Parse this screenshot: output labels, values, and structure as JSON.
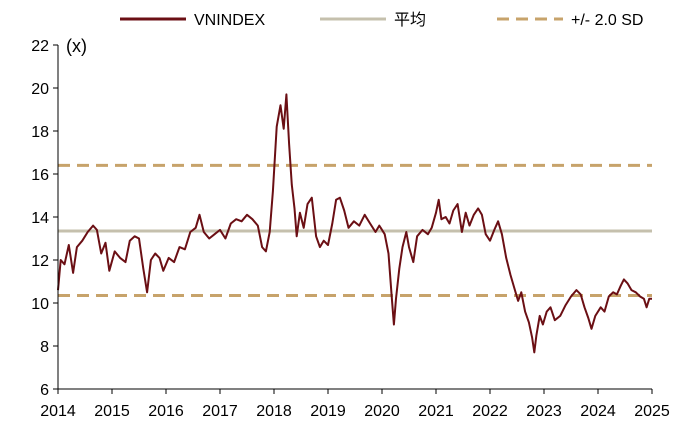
{
  "chart_data": {
    "type": "line",
    "title": "",
    "unit_label": "(x)",
    "xlabel": "",
    "ylabel": "",
    "xlim": [
      2014,
      2025
    ],
    "ylim": [
      6,
      22
    ],
    "x_ticks": [
      "2014",
      "2015",
      "2016",
      "2017",
      "2018",
      "2019",
      "2020",
      "2021",
      "2022",
      "2023",
      "2024",
      "2025"
    ],
    "y_ticks": [
      "6",
      "8",
      "10",
      "12",
      "14",
      "16",
      "18",
      "20",
      "22"
    ],
    "grid": false,
    "legend_position": "top",
    "series": [
      {
        "name": "VNINDEX",
        "color": "#6b0f14",
        "style": "solid",
        "points": [
          [
            2014.0,
            10.6
          ],
          [
            2014.05,
            12.0
          ],
          [
            2014.12,
            11.8
          ],
          [
            2014.2,
            12.7
          ],
          [
            2014.28,
            11.4
          ],
          [
            2014.35,
            12.6
          ],
          [
            2014.45,
            12.9
          ],
          [
            2014.55,
            13.3
          ],
          [
            2014.65,
            13.6
          ],
          [
            2014.72,
            13.4
          ],
          [
            2014.8,
            12.3
          ],
          [
            2014.88,
            12.8
          ],
          [
            2014.95,
            11.5
          ],
          [
            2015.05,
            12.4
          ],
          [
            2015.15,
            12.1
          ],
          [
            2015.25,
            11.9
          ],
          [
            2015.33,
            12.9
          ],
          [
            2015.42,
            13.1
          ],
          [
            2015.5,
            13.0
          ],
          [
            2015.58,
            11.6
          ],
          [
            2015.65,
            10.5
          ],
          [
            2015.72,
            12.0
          ],
          [
            2015.8,
            12.3
          ],
          [
            2015.88,
            12.1
          ],
          [
            2015.95,
            11.5
          ],
          [
            2016.05,
            12.1
          ],
          [
            2016.15,
            11.9
          ],
          [
            2016.25,
            12.6
          ],
          [
            2016.35,
            12.5
          ],
          [
            2016.45,
            13.3
          ],
          [
            2016.55,
            13.5
          ],
          [
            2016.62,
            14.1
          ],
          [
            2016.7,
            13.3
          ],
          [
            2016.8,
            13.0
          ],
          [
            2016.9,
            13.2
          ],
          [
            2017.0,
            13.4
          ],
          [
            2017.1,
            13.0
          ],
          [
            2017.2,
            13.7
          ],
          [
            2017.3,
            13.9
          ],
          [
            2017.4,
            13.8
          ],
          [
            2017.5,
            14.1
          ],
          [
            2017.6,
            13.9
          ],
          [
            2017.7,
            13.6
          ],
          [
            2017.78,
            12.6
          ],
          [
            2017.85,
            12.4
          ],
          [
            2017.92,
            13.3
          ],
          [
            2017.98,
            15.2
          ],
          [
            2018.05,
            18.2
          ],
          [
            2018.12,
            19.2
          ],
          [
            2018.18,
            18.1
          ],
          [
            2018.23,
            19.7
          ],
          [
            2018.28,
            17.4
          ],
          [
            2018.33,
            15.5
          ],
          [
            2018.38,
            14.4
          ],
          [
            2018.42,
            13.1
          ],
          [
            2018.48,
            14.2
          ],
          [
            2018.55,
            13.5
          ],
          [
            2018.62,
            14.6
          ],
          [
            2018.7,
            14.9
          ],
          [
            2018.78,
            13.1
          ],
          [
            2018.85,
            12.6
          ],
          [
            2018.92,
            12.9
          ],
          [
            2019.0,
            12.7
          ],
          [
            2019.08,
            13.7
          ],
          [
            2019.15,
            14.8
          ],
          [
            2019.22,
            14.9
          ],
          [
            2019.3,
            14.3
          ],
          [
            2019.38,
            13.5
          ],
          [
            2019.48,
            13.8
          ],
          [
            2019.58,
            13.6
          ],
          [
            2019.68,
            14.1
          ],
          [
            2019.78,
            13.7
          ],
          [
            2019.88,
            13.3
          ],
          [
            2019.95,
            13.6
          ],
          [
            2020.05,
            13.2
          ],
          [
            2020.12,
            12.3
          ],
          [
            2020.18,
            10.3
          ],
          [
            2020.22,
            9.0
          ],
          [
            2020.26,
            10.2
          ],
          [
            2020.32,
            11.6
          ],
          [
            2020.38,
            12.6
          ],
          [
            2020.45,
            13.3
          ],
          [
            2020.5,
            12.6
          ],
          [
            2020.58,
            11.9
          ],
          [
            2020.65,
            13.1
          ],
          [
            2020.75,
            13.4
          ],
          [
            2020.85,
            13.2
          ],
          [
            2020.92,
            13.5
          ],
          [
            2021.0,
            14.2
          ],
          [
            2021.05,
            14.8
          ],
          [
            2021.1,
            13.9
          ],
          [
            2021.18,
            14.0
          ],
          [
            2021.25,
            13.7
          ],
          [
            2021.32,
            14.3
          ],
          [
            2021.4,
            14.6
          ],
          [
            2021.48,
            13.3
          ],
          [
            2021.55,
            14.2
          ],
          [
            2021.62,
            13.6
          ],
          [
            2021.7,
            14.1
          ],
          [
            2021.78,
            14.4
          ],
          [
            2021.85,
            14.1
          ],
          [
            2021.92,
            13.2
          ],
          [
            2022.0,
            12.9
          ],
          [
            2022.08,
            13.4
          ],
          [
            2022.15,
            13.8
          ],
          [
            2022.22,
            13.2
          ],
          [
            2022.3,
            12.1
          ],
          [
            2022.38,
            11.3
          ],
          [
            2022.45,
            10.7
          ],
          [
            2022.52,
            10.1
          ],
          [
            2022.58,
            10.5
          ],
          [
            2022.65,
            9.6
          ],
          [
            2022.72,
            9.1
          ],
          [
            2022.78,
            8.4
          ],
          [
            2022.82,
            7.7
          ],
          [
            2022.86,
            8.5
          ],
          [
            2022.92,
            9.4
          ],
          [
            2022.98,
            9.0
          ],
          [
            2023.05,
            9.6
          ],
          [
            2023.12,
            9.8
          ],
          [
            2023.2,
            9.2
          ],
          [
            2023.3,
            9.4
          ],
          [
            2023.4,
            9.9
          ],
          [
            2023.5,
            10.3
          ],
          [
            2023.6,
            10.6
          ],
          [
            2023.68,
            10.4
          ],
          [
            2023.75,
            9.8
          ],
          [
            2023.82,
            9.3
          ],
          [
            2023.88,
            8.8
          ],
          [
            2023.95,
            9.4
          ],
          [
            2024.05,
            9.8
          ],
          [
            2024.12,
            9.6
          ],
          [
            2024.2,
            10.3
          ],
          [
            2024.28,
            10.5
          ],
          [
            2024.35,
            10.4
          ],
          [
            2024.42,
            10.8
          ],
          [
            2024.48,
            11.1
          ],
          [
            2024.55,
            10.9
          ],
          [
            2024.62,
            10.6
          ],
          [
            2024.7,
            10.5
          ],
          [
            2024.78,
            10.3
          ],
          [
            2024.85,
            10.2
          ],
          [
            2024.9,
            9.8
          ],
          [
            2024.95,
            10.2
          ],
          [
            2025.0,
            10.2
          ]
        ]
      },
      {
        "name": "平均",
        "color": "#c5c0ad",
        "style": "solid",
        "points": [
          [
            2014,
            13.35
          ],
          [
            2025,
            13.35
          ]
        ]
      },
      {
        "name": "+/-  2.0 SD",
        "color": "#c7a36b",
        "style": "dashed",
        "points": [
          [
            2014,
            16.4
          ],
          [
            2025,
            16.4
          ]
        ]
      },
      {
        "name": "+/-  2.0 SD (lower)",
        "color": "#c7a36b",
        "style": "dashed",
        "points": [
          [
            2014,
            10.35
          ],
          [
            2025,
            10.35
          ]
        ]
      }
    ],
    "legend": [
      {
        "label": "VNINDEX",
        "color": "#6b0f14",
        "style": "solid"
      },
      {
        "label": "平均",
        "color": "#c5c0ad",
        "style": "solid"
      },
      {
        "label": "+/-  2.0 SD",
        "color": "#c7a36b",
        "style": "dashed"
      }
    ]
  }
}
